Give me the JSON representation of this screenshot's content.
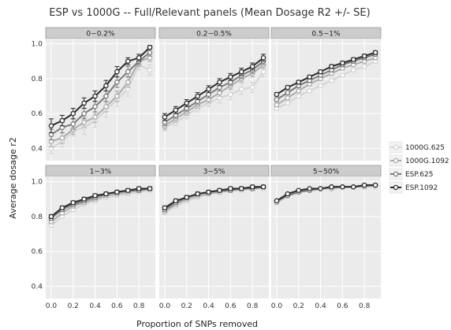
{
  "chart_data": {
    "type": "line",
    "title": "ESP vs 1000G -- Full/Relevant panels (Mean Dosage R2 +/- SE)",
    "xlabel": "Proportion of SNPs removed",
    "ylabel": "Average dosage r2",
    "x": [
      0.0,
      0.1,
      0.2,
      0.3,
      0.4,
      0.5,
      0.6,
      0.7,
      0.8,
      0.9
    ],
    "xticks": [
      "0.0",
      "0.2",
      "0.4",
      "0.6",
      "0.8"
    ],
    "xlim": [
      -0.05,
      0.95
    ],
    "ylim": [
      0.33,
      1.03
    ],
    "yticks": [
      "0.4",
      "0.6",
      "0.8",
      "1.0"
    ],
    "grid": true,
    "legend_position": "right",
    "series_styles": [
      {
        "name": "1000G.625",
        "color": "#d4d4d4"
      },
      {
        "name": "1000G.1092",
        "color": "#ababab"
      },
      {
        "name": "ESP.625",
        "color": "#7a7a7a"
      },
      {
        "name": "ESP.1092",
        "color": "#2b2b2b"
      }
    ],
    "panels": [
      {
        "label": "0~0.2%",
        "series": [
          {
            "name": "1000G.625",
            "values": [
              0.4,
              0.44,
              0.5,
              0.52,
              0.56,
              0.62,
              0.68,
              0.74,
              0.88,
              0.85
            ],
            "se": [
              0.03,
              0.03,
              0.03,
              0.04,
              0.04,
              0.04,
              0.04,
              0.04,
              0.03,
              0.03
            ]
          },
          {
            "name": "1000G.1092",
            "values": [
              0.44,
              0.46,
              0.51,
              0.55,
              0.58,
              0.64,
              0.7,
              0.78,
              0.9,
              0.92
            ],
            "se": [
              0.03,
              0.03,
              0.03,
              0.03,
              0.03,
              0.03,
              0.03,
              0.03,
              0.03,
              0.02
            ]
          },
          {
            "name": "ESP.625",
            "values": [
              0.48,
              0.52,
              0.54,
              0.6,
              0.64,
              0.7,
              0.78,
              0.84,
              0.9,
              0.95
            ],
            "se": [
              0.03,
              0.03,
              0.03,
              0.03,
              0.03,
              0.03,
              0.03,
              0.03,
              0.02,
              0.02
            ]
          },
          {
            "name": "ESP.1092",
            "values": [
              0.53,
              0.56,
              0.6,
              0.66,
              0.7,
              0.76,
              0.84,
              0.9,
              0.92,
              0.98
            ],
            "se": [
              0.04,
              0.03,
              0.03,
              0.03,
              0.03,
              0.03,
              0.03,
              0.02,
              0.02,
              0.01
            ]
          }
        ]
      },
      {
        "label": "0.2~0.5%",
        "series": [
          {
            "name": "1000G.625",
            "values": [
              0.52,
              0.55,
              0.59,
              0.63,
              0.66,
              0.69,
              0.71,
              0.74,
              0.75,
              0.84
            ],
            "se": [
              0.02,
              0.02,
              0.02,
              0.02,
              0.02,
              0.03,
              0.03,
              0.03,
              0.03,
              0.03
            ]
          },
          {
            "name": "1000G.1092",
            "values": [
              0.53,
              0.57,
              0.61,
              0.65,
              0.68,
              0.72,
              0.76,
              0.8,
              0.83,
              0.88
            ],
            "se": [
              0.02,
              0.02,
              0.02,
              0.02,
              0.02,
              0.02,
              0.02,
              0.02,
              0.02,
              0.02
            ]
          },
          {
            "name": "ESP.625",
            "values": [
              0.55,
              0.59,
              0.63,
              0.67,
              0.71,
              0.75,
              0.78,
              0.82,
              0.85,
              0.9
            ],
            "se": [
              0.02,
              0.02,
              0.02,
              0.02,
              0.02,
              0.02,
              0.02,
              0.02,
              0.02,
              0.02
            ]
          },
          {
            "name": "ESP.1092",
            "values": [
              0.58,
              0.62,
              0.66,
              0.7,
              0.74,
              0.78,
              0.81,
              0.84,
              0.87,
              0.92
            ],
            "se": [
              0.02,
              0.02,
              0.02,
              0.02,
              0.02,
              0.02,
              0.02,
              0.02,
              0.02,
              0.02
            ]
          }
        ]
      },
      {
        "label": "0.5~1%",
        "series": [
          {
            "name": "1000G.625",
            "values": [
              0.63,
              0.66,
              0.7,
              0.73,
              0.76,
              0.79,
              0.82,
              0.85,
              0.87,
              0.9
            ],
            "se": [
              0.01,
              0.01,
              0.01,
              0.01,
              0.01,
              0.01,
              0.01,
              0.01,
              0.01,
              0.01
            ]
          },
          {
            "name": "1000G.1092",
            "values": [
              0.65,
              0.69,
              0.73,
              0.77,
              0.8,
              0.83,
              0.86,
              0.88,
              0.9,
              0.92
            ],
            "se": [
              0.01,
              0.01,
              0.01,
              0.01,
              0.01,
              0.01,
              0.01,
              0.01,
              0.01,
              0.01
            ]
          },
          {
            "name": "ESP.625",
            "values": [
              0.68,
              0.72,
              0.76,
              0.79,
              0.82,
              0.85,
              0.88,
              0.9,
              0.92,
              0.94
            ],
            "se": [
              0.01,
              0.01,
              0.01,
              0.01,
              0.01,
              0.01,
              0.01,
              0.01,
              0.01,
              0.01
            ]
          },
          {
            "name": "ESP.1092",
            "values": [
              0.71,
              0.75,
              0.78,
              0.81,
              0.84,
              0.87,
              0.89,
              0.91,
              0.93,
              0.95
            ],
            "se": [
              0.01,
              0.01,
              0.01,
              0.01,
              0.01,
              0.01,
              0.01,
              0.01,
              0.01,
              0.01
            ]
          }
        ]
      },
      {
        "label": "1~3%",
        "series": [
          {
            "name": "1000G.625",
            "values": [
              0.75,
              0.8,
              0.84,
              0.87,
              0.89,
              0.91,
              0.92,
              0.93,
              0.94,
              0.95
            ],
            "se": [
              0.01,
              0.01,
              0.01,
              0.01,
              0.01,
              0.01,
              0.01,
              0.01,
              0.01,
              0.01
            ]
          },
          {
            "name": "1000G.1092",
            "values": [
              0.77,
              0.82,
              0.86,
              0.88,
              0.9,
              0.92,
              0.93,
              0.94,
              0.95,
              0.96
            ],
            "se": [
              0.01,
              0.01,
              0.01,
              0.01,
              0.01,
              0.01,
              0.01,
              0.01,
              0.01,
              0.01
            ]
          },
          {
            "name": "ESP.625",
            "values": [
              0.79,
              0.84,
              0.87,
              0.89,
              0.91,
              0.93,
              0.94,
              0.95,
              0.95,
              0.96
            ],
            "se": [
              0.01,
              0.01,
              0.01,
              0.01,
              0.01,
              0.01,
              0.01,
              0.01,
              0.01,
              0.01
            ]
          },
          {
            "name": "ESP.1092",
            "values": [
              0.8,
              0.85,
              0.88,
              0.9,
              0.92,
              0.93,
              0.94,
              0.95,
              0.96,
              0.96
            ],
            "se": [
              0.01,
              0.01,
              0.01,
              0.01,
              0.01,
              0.01,
              0.01,
              0.01,
              0.01,
              0.01
            ]
          }
        ]
      },
      {
        "label": "3~5%",
        "series": [
          {
            "name": "1000G.625",
            "values": [
              0.82,
              0.86,
              0.89,
              0.91,
              0.93,
              0.94,
              0.95,
              0.95,
              0.96,
              0.96
            ],
            "se": [
              0.01,
              0.01,
              0.01,
              0.01,
              0.01,
              0.01,
              0.01,
              0.01,
              0.01,
              0.01
            ]
          },
          {
            "name": "1000G.1092",
            "values": [
              0.83,
              0.87,
              0.9,
              0.92,
              0.93,
              0.94,
              0.95,
              0.96,
              0.96,
              0.97
            ],
            "se": [
              0.01,
              0.01,
              0.01,
              0.01,
              0.01,
              0.01,
              0.01,
              0.01,
              0.01,
              0.01
            ]
          },
          {
            "name": "ESP.625",
            "values": [
              0.84,
              0.88,
              0.91,
              0.93,
              0.94,
              0.95,
              0.95,
              0.96,
              0.96,
              0.97
            ],
            "se": [
              0.01,
              0.01,
              0.01,
              0.01,
              0.01,
              0.01,
              0.01,
              0.01,
              0.01,
              0.01
            ]
          },
          {
            "name": "ESP.1092",
            "values": [
              0.85,
              0.89,
              0.91,
              0.93,
              0.94,
              0.95,
              0.96,
              0.96,
              0.97,
              0.97
            ],
            "se": [
              0.01,
              0.01,
              0.01,
              0.01,
              0.01,
              0.01,
              0.01,
              0.01,
              0.01,
              0.01
            ]
          }
        ]
      },
      {
        "label": "5~50%",
        "series": [
          {
            "name": "1000G.625",
            "values": [
              0.88,
              0.92,
              0.94,
              0.95,
              0.96,
              0.96,
              0.97,
              0.97,
              0.97,
              0.97
            ],
            "se": [
              0.005,
              0.005,
              0.005,
              0.005,
              0.005,
              0.005,
              0.005,
              0.005,
              0.005,
              0.005
            ]
          },
          {
            "name": "1000G.1092",
            "values": [
              0.88,
              0.92,
              0.94,
              0.95,
              0.96,
              0.96,
              0.97,
              0.97,
              0.97,
              0.98
            ],
            "se": [
              0.005,
              0.005,
              0.005,
              0.005,
              0.005,
              0.005,
              0.005,
              0.005,
              0.005,
              0.005
            ]
          },
          {
            "name": "ESP.625",
            "values": [
              0.89,
              0.92,
              0.94,
              0.95,
              0.96,
              0.97,
              0.97,
              0.97,
              0.98,
              0.98
            ],
            "se": [
              0.005,
              0.005,
              0.005,
              0.005,
              0.005,
              0.005,
              0.005,
              0.005,
              0.005,
              0.005
            ]
          },
          {
            "name": "ESP.1092",
            "values": [
              0.89,
              0.93,
              0.95,
              0.96,
              0.96,
              0.97,
              0.97,
              0.97,
              0.98,
              0.98
            ],
            "se": [
              0.005,
              0.005,
              0.005,
              0.005,
              0.005,
              0.005,
              0.005,
              0.005,
              0.005,
              0.005
            ]
          }
        ]
      }
    ],
    "colors": {
      "panel_background": "#ebebeb",
      "grid_major": "#ffffff",
      "strip_background": "#cccccc",
      "strip_border": "#999999"
    }
  }
}
